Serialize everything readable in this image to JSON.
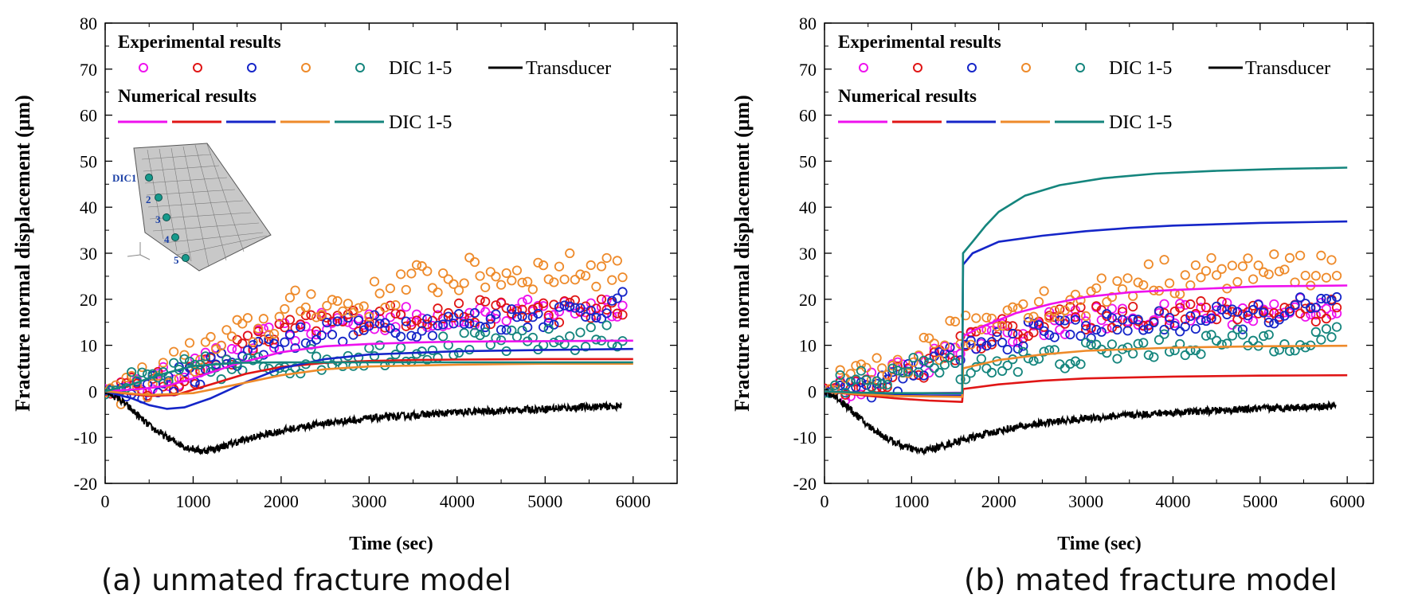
{
  "panels": [
    {
      "caption": "(a) unmated fracture model",
      "legend": {
        "exp_title": "Experimental results",
        "num_title": "Numerical results",
        "dic_label": "DIC 1-5",
        "transducer_label": "Transducer"
      },
      "inset": {
        "labels": [
          "DIC1",
          "2",
          "3",
          "4",
          "5"
        ]
      }
    },
    {
      "caption": "(b) mated fracture model",
      "legend": {
        "exp_title": "Experimental results",
        "num_title": "Numerical results",
        "dic_label": "DIC 1-5",
        "transducer_label": "Transducer"
      }
    }
  ],
  "colors": {
    "dic1": "#ee11ee",
    "dic2": "#e01515",
    "dic3": "#1525c8",
    "dic4": "#ee8a2a",
    "dic5": "#14857d",
    "transducer": "#000000"
  },
  "chart_data": [
    {
      "type": "line",
      "title": "(a) unmated fracture model",
      "xlabel": "Time (sec)",
      "ylabel": "Fracture normal displacement (μm)",
      "xlim": [
        0,
        6500
      ],
      "ylim": [
        -20,
        80
      ],
      "xticks": [
        0,
        1000,
        2000,
        3000,
        4000,
        5000,
        6000
      ],
      "yticks": [
        -20,
        -10,
        0,
        10,
        20,
        30,
        40,
        50,
        60,
        70,
        80
      ],
      "transducer": {
        "name": "Transducer",
        "x": [
          0,
          150,
          300,
          500,
          700,
          900,
          1100,
          1300,
          1500,
          1800,
          2100,
          2500,
          3000,
          3500,
          4000,
          4500,
          5000,
          5500,
          5870
        ],
        "y": [
          0,
          -1.5,
          -4,
          -7.5,
          -10,
          -12,
          -13,
          -12.2,
          -11,
          -9.5,
          -8.2,
          -6.9,
          -5.9,
          -5.2,
          -4.6,
          -4.2,
          -3.8,
          -3.4,
          -3.2
        ]
      },
      "series": [
        {
          "name": "DIC 1",
          "color_key": "dic1",
          "num": {
            "x": [
              0,
              400,
              700,
              1000,
              1500,
              2000,
              2500,
              3000,
              3500,
              4000,
              5000,
              6000
            ],
            "y": [
              0,
              0.5,
              1.2,
              2.8,
              6,
              8.5,
              9.8,
              10.3,
              10.6,
              10.8,
              10.9,
              11
            ]
          },
          "exp": {
            "x": [
              0,
              500,
              1000,
              1500,
              2000,
              2500,
              3000,
              4000,
              5000,
              5900
            ],
            "y": [
              0,
              1.5,
              5,
              9,
              12.5,
              14.5,
              15.5,
              16.5,
              17.5,
              19
            ]
          }
        },
        {
          "name": "DIC 2",
          "color_key": "dic2",
          "num": {
            "x": [
              0,
              500,
              800,
              1200,
              1600,
              2000,
              2500,
              3000,
              3500,
              4000,
              5000,
              6000
            ],
            "y": [
              0,
              -1,
              -0.8,
              1.5,
              3.8,
              5.3,
              6.2,
              6.6,
              6.8,
              6.9,
              7,
              7
            ]
          },
          "exp": {
            "x": [
              0,
              500,
              1000,
              1500,
              2000,
              2500,
              3000,
              4000,
              5000,
              5900
            ],
            "y": [
              0,
              1,
              4,
              9,
              13,
              15,
              16,
              17,
              17.5,
              18
            ]
          }
        },
        {
          "name": "DIC 3",
          "color_key": "dic3",
          "num": {
            "x": [
              0,
              300,
              500,
              700,
              900,
              1200,
              1600,
              2000,
              2500,
              3000,
              4000,
              5000,
              6000
            ],
            "y": [
              0,
              -1.5,
              -3,
              -3.8,
              -3.5,
              -1.5,
              2,
              5,
              7,
              8,
              8.7,
              9,
              9.2
            ]
          },
          "exp": {
            "x": [
              0,
              500,
              1000,
              1500,
              2000,
              2500,
              3000,
              4000,
              5000,
              5900
            ],
            "y": [
              0,
              1,
              3.5,
              8,
              11,
              13,
              14,
              15,
              16.5,
              19
            ]
          }
        },
        {
          "name": "DIC 4",
          "color_key": "dic4",
          "num": {
            "x": [
              0,
              500,
              1000,
              1500,
              2000,
              2500,
              3000,
              4000,
              5000,
              6000
            ],
            "y": [
              0,
              -0.8,
              -0.4,
              1.5,
              3.5,
              4.8,
              5.4,
              5.8,
              6,
              6
            ]
          },
          "exp": {
            "x": [
              0,
              500,
              1000,
              1500,
              2000,
              2300,
              2800,
              3500,
              4000,
              5000,
              5900
            ],
            "y": [
              0,
              2.5,
              7.5,
              12,
              16,
              20,
              18,
              24,
              25,
              26,
              27
            ]
          }
        },
        {
          "name": "DIC 5",
          "color_key": "dic5",
          "num": {
            "x": [
              0,
              300,
              600,
              1000,
              1500,
              2000,
              3000,
              4000,
              5000,
              6000
            ],
            "y": [
              0,
              1.5,
              3.5,
              5.5,
              6.2,
              6.3,
              6.3,
              6.3,
              6.3,
              6.3
            ]
          },
          "exp": {
            "x": [
              0,
              500,
              1000,
              1500,
              2000,
              2500,
              3000,
              4000,
              5000,
              5900
            ],
            "y": [
              0,
              2.5,
              5,
              5,
              6,
              7,
              8,
              10,
              11,
              12
            ]
          }
        }
      ]
    },
    {
      "type": "line",
      "title": "(b) mated fracture model",
      "xlabel": "Time (sec)",
      "ylabel": "Fracture normal displacement (μm)",
      "xlim": [
        0,
        6300
      ],
      "ylim": [
        -20,
        80
      ],
      "xticks": [
        0,
        1000,
        2000,
        3000,
        4000,
        5000,
        6000
      ],
      "yticks": [
        -20,
        -10,
        0,
        10,
        20,
        30,
        40,
        50,
        60,
        70,
        80
      ],
      "transducer": {
        "name": "Transducer",
        "x": [
          0,
          150,
          300,
          500,
          700,
          900,
          1100,
          1300,
          1500,
          1800,
          2100,
          2500,
          3000,
          3500,
          4000,
          4500,
          5000,
          5500,
          5870
        ],
        "y": [
          0,
          -1.5,
          -4,
          -7.5,
          -10,
          -12,
          -13,
          -12.2,
          -11,
          -9.5,
          -8.2,
          -6.9,
          -5.9,
          -5.2,
          -4.6,
          -4.2,
          -3.8,
          -3.4,
          -3.2
        ]
      },
      "series": [
        {
          "name": "DIC 1",
          "color_key": "dic1",
          "num": {
            "x": [
              0,
              400,
              800,
              1200,
              1580,
              1590,
              1800,
              2200,
              2600,
              3000,
              3500,
              4000,
              5000,
              6000
            ],
            "y": [
              0,
              -0.3,
              -0.5,
              -0.4,
              -0.3,
              12,
              14,
              17,
              19,
              20.5,
              21.5,
              22,
              22.8,
              23
            ]
          },
          "exp": {
            "x": [
              0,
              500,
              1000,
              1500,
              2000,
              2500,
              3000,
              4000,
              5000,
              5900
            ],
            "y": [
              0,
              1.5,
              5,
              9,
              12.5,
              14.5,
              15.5,
              16.5,
              17.5,
              19
            ]
          }
        },
        {
          "name": "DIC 2",
          "color_key": "dic2",
          "num": {
            "x": [
              0,
              400,
              800,
              1200,
              1580,
              1590,
              2000,
              2500,
              3000,
              4000,
              5000,
              6000
            ],
            "y": [
              0,
              -0.8,
              -1.5,
              -2,
              -2.3,
              0.5,
              1.5,
              2.3,
              2.8,
              3.2,
              3.4,
              3.5
            ]
          },
          "exp": {
            "x": [
              0,
              500,
              1000,
              1500,
              2000,
              2500,
              3000,
              4000,
              5000,
              5900
            ],
            "y": [
              0,
              1,
              4,
              9,
              13,
              15,
              16,
              17,
              17.5,
              18
            ]
          }
        },
        {
          "name": "DIC 3",
          "color_key": "dic3",
          "num": {
            "x": [
              0,
              400,
              800,
              1200,
              1580,
              1590,
              1700,
              2000,
              2500,
              3000,
              3500,
              4000,
              5000,
              6000
            ],
            "y": [
              0,
              -0.5,
              -0.8,
              -0.9,
              -0.9,
              27.5,
              30,
              32.5,
              33.8,
              34.8,
              35.5,
              36,
              36.6,
              36.9
            ]
          },
          "exp": {
            "x": [
              0,
              500,
              1000,
              1500,
              2000,
              2500,
              3000,
              4000,
              5000,
              5900
            ],
            "y": [
              0,
              1,
              3.5,
              8,
              11,
              13,
              14,
              15,
              16.5,
              19
            ]
          }
        },
        {
          "name": "DIC 4",
          "color_key": "dic4",
          "num": {
            "x": [
              0,
              400,
              800,
              1200,
              1580,
              1590,
              2000,
              2500,
              3000,
              4000,
              5000,
              6000
            ],
            "y": [
              0,
              -0.6,
              -1,
              -1.1,
              -1.2,
              5,
              6.8,
              8,
              8.8,
              9.5,
              9.8,
              9.9
            ]
          },
          "exp": {
            "x": [
              0,
              500,
              1000,
              1500,
              2000,
              2300,
              2800,
              3500,
              4000,
              5000,
              5900
            ],
            "y": [
              0,
              2.5,
              7.5,
              12,
              16,
              20,
              18,
              24,
              25,
              26,
              27
            ]
          }
        },
        {
          "name": "DIC 5",
          "color_key": "dic5",
          "num": {
            "x": [
              0,
              400,
              800,
              1200,
              1580,
              1590,
              1700,
              1850,
              2000,
              2300,
              2700,
              3200,
              3800,
              4500,
              5200,
              6000
            ],
            "y": [
              0,
              -0.3,
              -0.4,
              -0.4,
              -0.4,
              30,
              32.5,
              36,
              39,
              42.5,
              44.8,
              46.3,
              47.3,
              47.9,
              48.3,
              48.6
            ]
          },
          "exp": {
            "x": [
              0,
              500,
              1000,
              1500,
              2000,
              2500,
              3000,
              4000,
              5000,
              5900
            ],
            "y": [
              0,
              2.5,
              5,
              5,
              6,
              7,
              8,
              10,
              11,
              12
            ]
          }
        }
      ]
    }
  ]
}
